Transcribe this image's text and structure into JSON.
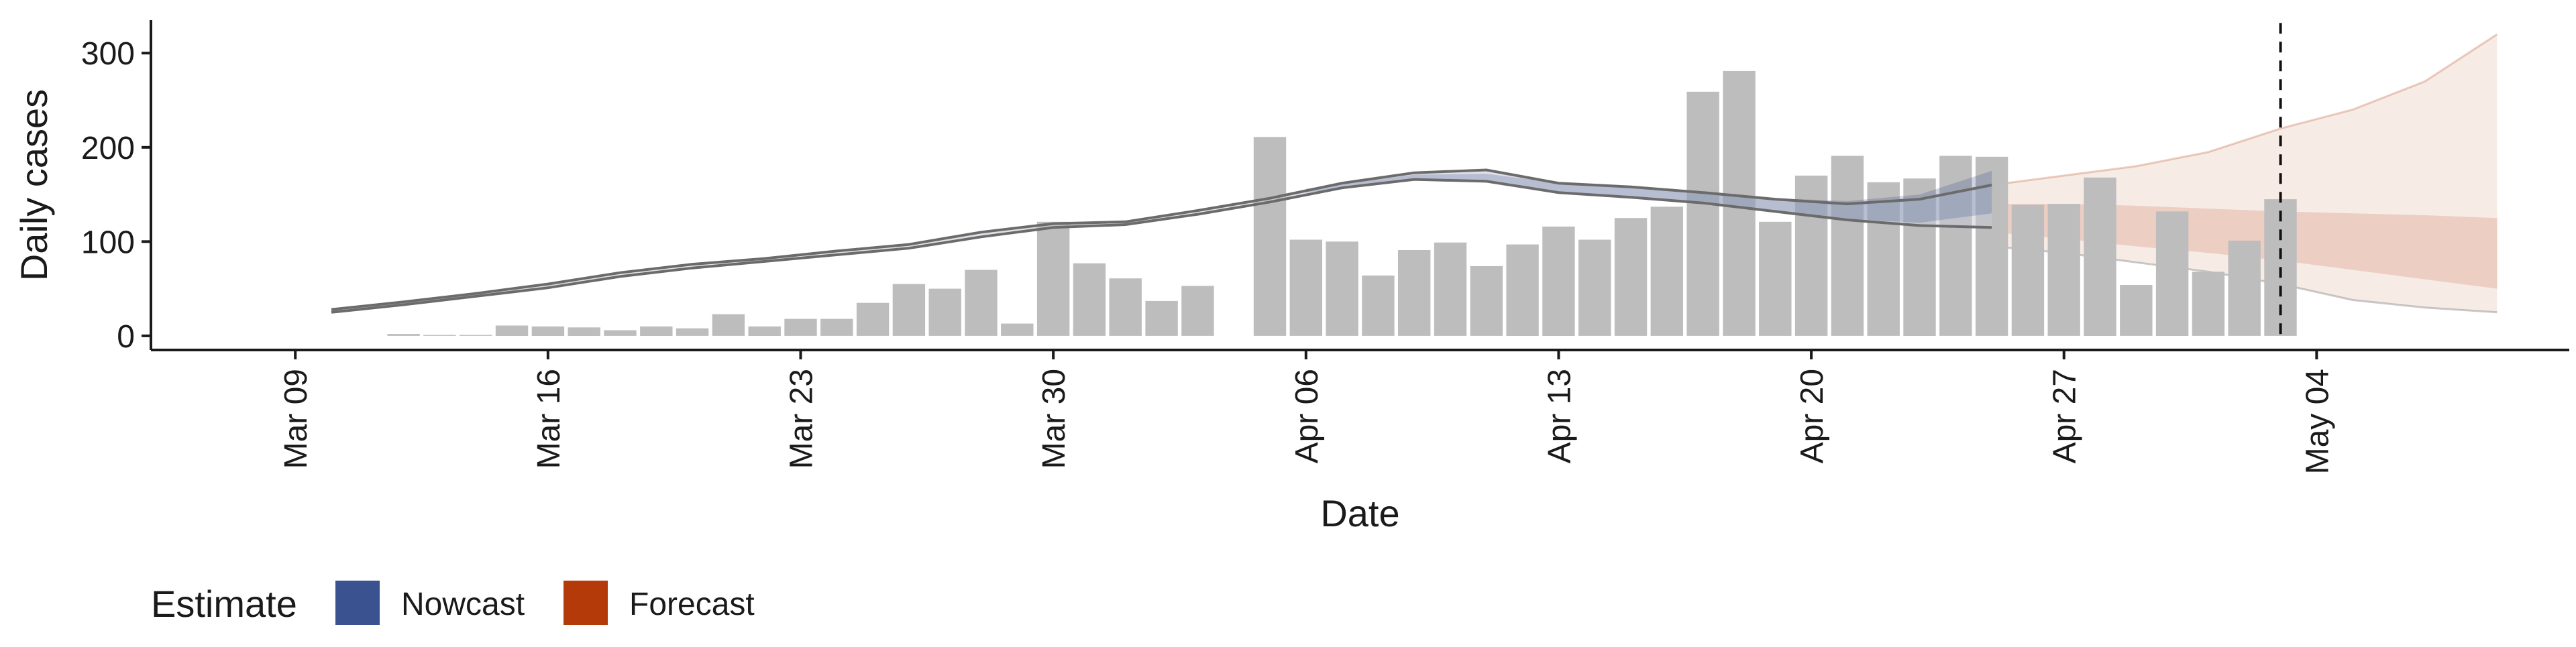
{
  "chart_data": {
    "type": "bar",
    "xlabel": "Date",
    "ylabel": "Daily cases",
    "y_ticks": [
      0,
      100,
      200,
      300
    ],
    "ylim": [
      -15,
      335
    ],
    "x_ticks": [
      "Mar 09",
      "Mar 16",
      "Mar 23",
      "Mar 30",
      "Apr 06",
      "Apr 13",
      "Apr 20",
      "Apr 27",
      "May 04"
    ],
    "xlim": [
      "2020-03-05",
      "2020-05-11"
    ],
    "bars": {
      "color": "#bdbdbd",
      "dates": [
        "2020-03-12",
        "2020-03-13",
        "2020-03-14",
        "2020-03-15",
        "2020-03-16",
        "2020-03-17",
        "2020-03-18",
        "2020-03-19",
        "2020-03-20",
        "2020-03-21",
        "2020-03-22",
        "2020-03-23",
        "2020-03-24",
        "2020-03-25",
        "2020-03-26",
        "2020-03-27",
        "2020-03-28",
        "2020-03-29",
        "2020-03-30",
        "2020-03-31",
        "2020-04-01",
        "2020-04-02",
        "2020-04-03",
        "2020-04-04",
        "2020-04-05",
        "2020-04-06",
        "2020-04-07",
        "2020-04-08",
        "2020-04-09",
        "2020-04-10",
        "2020-04-11",
        "2020-04-12",
        "2020-04-13",
        "2020-04-14",
        "2020-04-15",
        "2020-04-16",
        "2020-04-17",
        "2020-04-18",
        "2020-04-19",
        "2020-04-20",
        "2020-04-21",
        "2020-04-22",
        "2020-04-23",
        "2020-04-24",
        "2020-04-25",
        "2020-04-26",
        "2020-04-27",
        "2020-04-28",
        "2020-04-29",
        "2020-04-30",
        "2020-05-01",
        "2020-05-02",
        "2020-05-03"
      ],
      "values": [
        2,
        1,
        1,
        11,
        10,
        9,
        6,
        10,
        8,
        23,
        10,
        18,
        18,
        35,
        55,
        50,
        70,
        13,
        121,
        77,
        61,
        37,
        53,
        0,
        211,
        102,
        100,
        64,
        91,
        99,
        74,
        97,
        116,
        102,
        125,
        137,
        259,
        281,
        121,
        170,
        191,
        163,
        167,
        191,
        190,
        139,
        140,
        168,
        54,
        132,
        68,
        101,
        145
      ]
    },
    "observed_line": {
      "color": "#6b6b6b",
      "dates": [
        "2020-03-10",
        "2020-03-12",
        "2020-03-14",
        "2020-03-16",
        "2020-03-18",
        "2020-03-20",
        "2020-03-22",
        "2020-03-24",
        "2020-03-26",
        "2020-03-28",
        "2020-03-30",
        "2020-04-01",
        "2020-04-03",
        "2020-04-05",
        "2020-04-07",
        "2020-04-09",
        "2020-04-11",
        "2020-04-13",
        "2020-04-15",
        "2020-04-17",
        "2020-04-19",
        "2020-04-21",
        "2020-04-23",
        "2020-04-25"
      ],
      "upper": [
        28,
        36,
        45,
        55,
        67,
        76,
        82,
        90,
        97,
        110,
        119,
        121,
        133,
        146,
        162,
        173,
        176,
        162,
        158,
        152,
        145,
        140,
        145,
        160
      ],
      "lower": [
        25,
        33,
        42,
        51,
        63,
        72,
        79,
        86,
        93,
        105,
        115,
        118,
        129,
        142,
        157,
        166,
        164,
        152,
        147,
        141,
        132,
        123,
        117,
        115
      ]
    },
    "nowcast": {
      "name": "Nowcast",
      "color": "#3a528f",
      "dates": [
        "2020-04-06",
        "2020-04-09",
        "2020-04-11",
        "2020-04-13",
        "2020-04-15",
        "2020-04-17",
        "2020-04-19",
        "2020-04-21",
        "2020-04-23",
        "2020-04-25"
      ],
      "upper": [
        156,
        171,
        172,
        162,
        158,
        153,
        146,
        143,
        150,
        175
      ],
      "lower": [
        152,
        165,
        164,
        153,
        148,
        140,
        132,
        124,
        120,
        130
      ]
    },
    "forecast": {
      "name": "Forecast",
      "color": "#b43a0a",
      "dates": [
        "2020-04-25",
        "2020-04-27",
        "2020-04-29",
        "2020-05-01",
        "2020-05-03",
        "2020-05-05",
        "2020-05-07",
        "2020-05-09"
      ],
      "outer_upper": [
        160,
        170,
        180,
        195,
        220,
        240,
        270,
        320
      ],
      "outer_lower": [
        95,
        88,
        78,
        68,
        55,
        38,
        30,
        25
      ],
      "inner_upper": [
        140,
        140,
        138,
        135,
        132,
        130,
        128,
        125
      ],
      "inner_lower": [
        110,
        103,
        95,
        88,
        80,
        70,
        60,
        50
      ]
    },
    "vline": {
      "date": "2020-05-03",
      "style": "dashed"
    },
    "legend": {
      "title": "Estimate",
      "position": "bottom-left"
    }
  }
}
